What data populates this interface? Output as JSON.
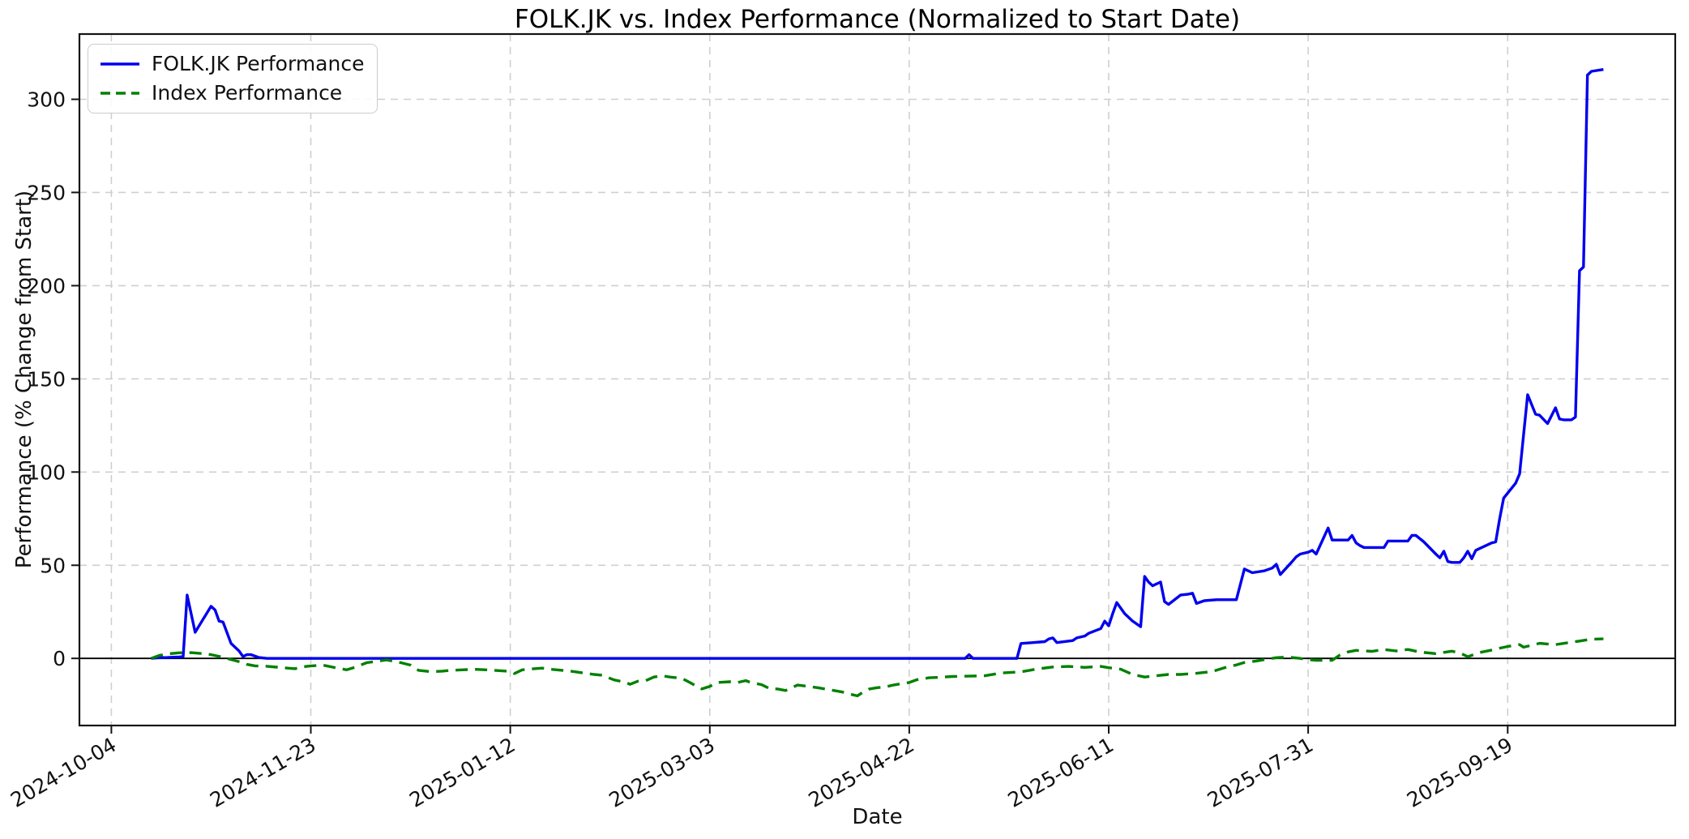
{
  "title": "FOLK.JK vs. Index Performance (Normalized to Start Date)",
  "xlabel": "Date",
  "ylabel": "Performance (% Change from Start)",
  "chart_data": {
    "type": "line",
    "x_unit": "date",
    "title": "FOLK.JK vs. Index Performance (Normalized to Start Date)",
    "xlabel": "Date",
    "ylabel": "Performance (% Change from Start)",
    "grid": "dashed",
    "zero_line": true,
    "legend_position": "upper-left",
    "x_tick_rotation_deg": 30,
    "x_tick_labels": [
      "2024-10-04",
      "2024-11-23",
      "2025-01-12",
      "2025-03-03",
      "2025-04-22",
      "2025-06-11",
      "2025-07-31",
      "2025-09-19"
    ],
    "y_ticks": [
      0,
      50,
      100,
      150,
      200,
      250,
      300
    ],
    "xlim_days_from_first_tick": [
      -8,
      392
    ],
    "ylim": [
      -36,
      335
    ],
    "series": [
      {
        "name": "FOLK.JK Performance",
        "id": "folk",
        "color": "#0000ee",
        "style": "solid",
        "points": [
          [
            "2024-10-14",
            0
          ],
          [
            "2024-10-16",
            0.4
          ],
          [
            "2024-10-18",
            0.5
          ],
          [
            "2024-10-21",
            0.8
          ],
          [
            "2024-10-22",
            1
          ],
          [
            "2024-10-23",
            34
          ],
          [
            "2024-10-25",
            14
          ],
          [
            "2024-10-27",
            21
          ],
          [
            "2024-10-29",
            28
          ],
          [
            "2024-10-30",
            26
          ],
          [
            "2024-10-31",
            20
          ],
          [
            "2024-11-01",
            19.5
          ],
          [
            "2024-11-03",
            8
          ],
          [
            "2024-11-04",
            6
          ],
          [
            "2024-11-05",
            4
          ],
          [
            "2024-11-06",
            1
          ],
          [
            "2024-11-07",
            2
          ],
          [
            "2024-11-08",
            2
          ],
          [
            "2024-11-10",
            0.5
          ],
          [
            "2024-11-12",
            0
          ],
          [
            "2024-11-20",
            0
          ],
          [
            "2024-12-01",
            0
          ],
          [
            "2024-12-15",
            0
          ],
          [
            "2025-01-01",
            0
          ],
          [
            "2025-01-15",
            0
          ],
          [
            "2025-02-01",
            0
          ],
          [
            "2025-02-15",
            0
          ],
          [
            "2025-03-01",
            0
          ],
          [
            "2025-03-15",
            0
          ],
          [
            "2025-04-01",
            0
          ],
          [
            "2025-04-15",
            0
          ],
          [
            "2025-05-01",
            0
          ],
          [
            "2025-05-06",
            0
          ],
          [
            "2025-05-07",
            2
          ],
          [
            "2025-05-08",
            0
          ],
          [
            "2025-05-16",
            0
          ],
          [
            "2025-05-19",
            0
          ],
          [
            "2025-05-20",
            8
          ],
          [
            "2025-05-22",
            8.3
          ],
          [
            "2025-05-26",
            9
          ],
          [
            "2025-05-27",
            10.5
          ],
          [
            "2025-05-28",
            11
          ],
          [
            "2025-05-29",
            8.5
          ],
          [
            "2025-06-02",
            9.6
          ],
          [
            "2025-06-03",
            11
          ],
          [
            "2025-06-05",
            12
          ],
          [
            "2025-06-06",
            13.5
          ],
          [
            "2025-06-09",
            16
          ],
          [
            "2025-06-10",
            20
          ],
          [
            "2025-06-11",
            17.5
          ],
          [
            "2025-06-12",
            24
          ],
          [
            "2025-06-13",
            30
          ],
          [
            "2025-06-15",
            24
          ],
          [
            "2025-06-17",
            20
          ],
          [
            "2025-06-19",
            17
          ],
          [
            "2025-06-20",
            44
          ],
          [
            "2025-06-21",
            41
          ],
          [
            "2025-06-22",
            39
          ],
          [
            "2025-06-24",
            41
          ],
          [
            "2025-06-25",
            30.5
          ],
          [
            "2025-06-26",
            29
          ],
          [
            "2025-06-29",
            34
          ],
          [
            "2025-07-01",
            34.5
          ],
          [
            "2025-07-02",
            35
          ],
          [
            "2025-07-03",
            29.5
          ],
          [
            "2025-07-05",
            31
          ],
          [
            "2025-07-08",
            31.5
          ],
          [
            "2025-07-13",
            31.5
          ],
          [
            "2025-07-15",
            48
          ],
          [
            "2025-07-17",
            46
          ],
          [
            "2025-07-20",
            47
          ],
          [
            "2025-07-22",
            48.5
          ],
          [
            "2025-07-23",
            50.5
          ],
          [
            "2025-07-24",
            45
          ],
          [
            "2025-07-27",
            52
          ],
          [
            "2025-07-28",
            54.5
          ],
          [
            "2025-07-29",
            56
          ],
          [
            "2025-07-31",
            57
          ],
          [
            "2025-08-01",
            58
          ],
          [
            "2025-08-02",
            56
          ],
          [
            "2025-08-05",
            70
          ],
          [
            "2025-08-06",
            63.5
          ],
          [
            "2025-08-10",
            63.5
          ],
          [
            "2025-08-11",
            66
          ],
          [
            "2025-08-12",
            62
          ],
          [
            "2025-08-13",
            60.5
          ],
          [
            "2025-08-14",
            59.5
          ],
          [
            "2025-08-19",
            59.5
          ],
          [
            "2025-08-20",
            63
          ],
          [
            "2025-08-25",
            63
          ],
          [
            "2025-08-26",
            66
          ],
          [
            "2025-08-27",
            66
          ],
          [
            "2025-08-29",
            62.5
          ],
          [
            "2025-09-01",
            56
          ],
          [
            "2025-09-02",
            54
          ],
          [
            "2025-09-03",
            57.5
          ],
          [
            "2025-09-04",
            52
          ],
          [
            "2025-09-05",
            51.5
          ],
          [
            "2025-09-07",
            51.5
          ],
          [
            "2025-09-08",
            54
          ],
          [
            "2025-09-09",
            57.5
          ],
          [
            "2025-09-10",
            53.5
          ],
          [
            "2025-09-11",
            58
          ],
          [
            "2025-09-12",
            59
          ],
          [
            "2025-09-15",
            62
          ],
          [
            "2025-09-16",
            62.5
          ],
          [
            "2025-09-17",
            75
          ],
          [
            "2025-09-18",
            86
          ],
          [
            "2025-09-21",
            94
          ],
          [
            "2025-09-22",
            99
          ],
          [
            "2025-09-23",
            120
          ],
          [
            "2025-09-24",
            141.5
          ],
          [
            "2025-09-26",
            131
          ],
          [
            "2025-09-27",
            130.5
          ],
          [
            "2025-09-29",
            126
          ],
          [
            "2025-10-01",
            134.5
          ],
          [
            "2025-10-02",
            128.5
          ],
          [
            "2025-10-03",
            128
          ],
          [
            "2025-10-05",
            128
          ],
          [
            "2025-10-06",
            129.5
          ],
          [
            "2025-10-07",
            208
          ],
          [
            "2025-10-08",
            210
          ],
          [
            "2025-10-09",
            313
          ],
          [
            "2025-10-10",
            315
          ],
          [
            "2025-10-13",
            316
          ]
        ]
      },
      {
        "name": "Index Performance",
        "id": "index",
        "color": "#008000",
        "style": "dashed",
        "points": [
          [
            "2024-10-14",
            0
          ],
          [
            "2024-10-16",
            1.6
          ],
          [
            "2024-10-18",
            2.4
          ],
          [
            "2024-10-21",
            3
          ],
          [
            "2024-10-24",
            3.1
          ],
          [
            "2024-10-27",
            2.6
          ],
          [
            "2024-10-29",
            2
          ],
          [
            "2024-11-01",
            0.6
          ],
          [
            "2024-11-03",
            -0.6
          ],
          [
            "2024-11-06",
            -2.3
          ],
          [
            "2024-11-07",
            -3.2
          ],
          [
            "2024-11-09",
            -4
          ],
          [
            "2024-11-12",
            -4.2
          ],
          [
            "2024-11-16",
            -5
          ],
          [
            "2024-11-19",
            -5.5
          ],
          [
            "2024-11-22",
            -4.2
          ],
          [
            "2024-11-26",
            -3.6
          ],
          [
            "2024-11-29",
            -4.9
          ],
          [
            "2024-12-02",
            -6.1
          ],
          [
            "2024-12-04",
            -4.8
          ],
          [
            "2024-12-07",
            -2.3
          ],
          [
            "2024-12-10",
            -1.4
          ],
          [
            "2024-12-12",
            -0.8
          ],
          [
            "2024-12-15",
            -2
          ],
          [
            "2024-12-18",
            -3.6
          ],
          [
            "2024-12-20",
            -6.4
          ],
          [
            "2024-12-23",
            -7.1
          ],
          [
            "2024-12-26",
            -6.8
          ],
          [
            "2024-12-28",
            -6.4
          ],
          [
            "2024-12-31",
            -6.1
          ],
          [
            "2025-01-03",
            -5.8
          ],
          [
            "2025-01-06",
            -6.1
          ],
          [
            "2025-01-08",
            -6.4
          ],
          [
            "2025-01-12",
            -7
          ],
          [
            "2025-01-13",
            -8.1
          ],
          [
            "2025-01-15",
            -6.1
          ],
          [
            "2025-01-18",
            -5.5
          ],
          [
            "2025-01-20",
            -5.2
          ],
          [
            "2025-01-22",
            -5.8
          ],
          [
            "2025-01-25",
            -6.4
          ],
          [
            "2025-01-27",
            -6.8
          ],
          [
            "2025-01-30",
            -7.7
          ],
          [
            "2025-02-02",
            -8.6
          ],
          [
            "2025-02-04",
            -9
          ],
          [
            "2025-02-07",
            -11.5
          ],
          [
            "2025-02-10",
            -12.9
          ],
          [
            "2025-02-11",
            -13.9
          ],
          [
            "2025-02-13",
            -12.2
          ],
          [
            "2025-02-15",
            -11.9
          ],
          [
            "2025-02-17",
            -10
          ],
          [
            "2025-02-19",
            -9.3
          ],
          [
            "2025-02-21",
            -10
          ],
          [
            "2025-02-24",
            -10.7
          ],
          [
            "2025-02-26",
            -12.9
          ],
          [
            "2025-02-28",
            -15.3
          ],
          [
            "2025-03-01",
            -16.4
          ],
          [
            "2025-03-03",
            -15
          ],
          [
            "2025-03-05",
            -12.9
          ],
          [
            "2025-03-08",
            -12.5
          ],
          [
            "2025-03-10",
            -12.9
          ],
          [
            "2025-03-12",
            -11.9
          ],
          [
            "2025-03-13",
            -12.7
          ],
          [
            "2025-03-16",
            -14.1
          ],
          [
            "2025-03-18",
            -16.2
          ],
          [
            "2025-03-20",
            -16.4
          ],
          [
            "2025-03-22",
            -17.2
          ],
          [
            "2025-03-24",
            -15.3
          ],
          [
            "2025-03-25",
            -14.3
          ],
          [
            "2025-03-27",
            -14.8
          ],
          [
            "2025-03-30",
            -15.7
          ],
          [
            "2025-04-02",
            -16.8
          ],
          [
            "2025-04-05",
            -17.9
          ],
          [
            "2025-04-07",
            -19.1
          ],
          [
            "2025-04-09",
            -20.1
          ],
          [
            "2025-04-10",
            -18.7
          ],
          [
            "2025-04-12",
            -16.4
          ],
          [
            "2025-04-14",
            -15.7
          ],
          [
            "2025-04-16",
            -15.3
          ],
          [
            "2025-04-18",
            -14.3
          ],
          [
            "2025-04-22",
            -12.9
          ],
          [
            "2025-04-24",
            -11.4
          ],
          [
            "2025-04-27",
            -10.4
          ],
          [
            "2025-04-29",
            -10.2
          ],
          [
            "2025-05-03",
            -9.7
          ],
          [
            "2025-05-07",
            -9.5
          ],
          [
            "2025-05-11",
            -9.3
          ],
          [
            "2025-05-15",
            -7.8
          ],
          [
            "2025-05-20",
            -7.2
          ],
          [
            "2025-05-24",
            -5.7
          ],
          [
            "2025-05-28",
            -4.6
          ],
          [
            "2025-06-01",
            -4.3
          ],
          [
            "2025-06-05",
            -4.8
          ],
          [
            "2025-06-09",
            -4.3
          ],
          [
            "2025-06-11",
            -5
          ],
          [
            "2025-06-14",
            -5.8
          ],
          [
            "2025-06-17",
            -8.6
          ],
          [
            "2025-06-20",
            -10
          ],
          [
            "2025-06-23",
            -9.3
          ],
          [
            "2025-06-26",
            -8.6
          ],
          [
            "2025-06-29",
            -8.6
          ],
          [
            "2025-07-03",
            -8
          ],
          [
            "2025-07-07",
            -7
          ],
          [
            "2025-07-10",
            -5
          ],
          [
            "2025-07-13",
            -3.5
          ],
          [
            "2025-07-15",
            -2.2
          ],
          [
            "2025-07-18",
            -1.4
          ],
          [
            "2025-07-21",
            -0.3
          ],
          [
            "2025-07-23",
            0.4
          ],
          [
            "2025-07-26",
            0.7
          ],
          [
            "2025-07-29",
            0
          ],
          [
            "2025-07-31",
            -0.7
          ],
          [
            "2025-08-02",
            -1
          ],
          [
            "2025-08-06",
            -1
          ],
          [
            "2025-08-08",
            1.9
          ],
          [
            "2025-08-10",
            3.5
          ],
          [
            "2025-08-12",
            4.3
          ],
          [
            "2025-08-16",
            3.8
          ],
          [
            "2025-08-19",
            4.8
          ],
          [
            "2025-08-22",
            4
          ],
          [
            "2025-08-25",
            4.8
          ],
          [
            "2025-08-28",
            3.4
          ],
          [
            "2025-09-01",
            2.6
          ],
          [
            "2025-09-05",
            3.9
          ],
          [
            "2025-09-07",
            3
          ],
          [
            "2025-09-09",
            0.9
          ],
          [
            "2025-09-12",
            3.2
          ],
          [
            "2025-09-15",
            4.5
          ],
          [
            "2025-09-17",
            5.5
          ],
          [
            "2025-09-19",
            6.4
          ],
          [
            "2025-09-22",
            7.4
          ],
          [
            "2025-09-23",
            6
          ],
          [
            "2025-09-27",
            8.1
          ],
          [
            "2025-10-01",
            7.4
          ],
          [
            "2025-10-04",
            8.4
          ],
          [
            "2025-10-07",
            9.3
          ],
          [
            "2025-10-10",
            10.3
          ],
          [
            "2025-10-13",
            10.5
          ]
        ]
      }
    ]
  }
}
